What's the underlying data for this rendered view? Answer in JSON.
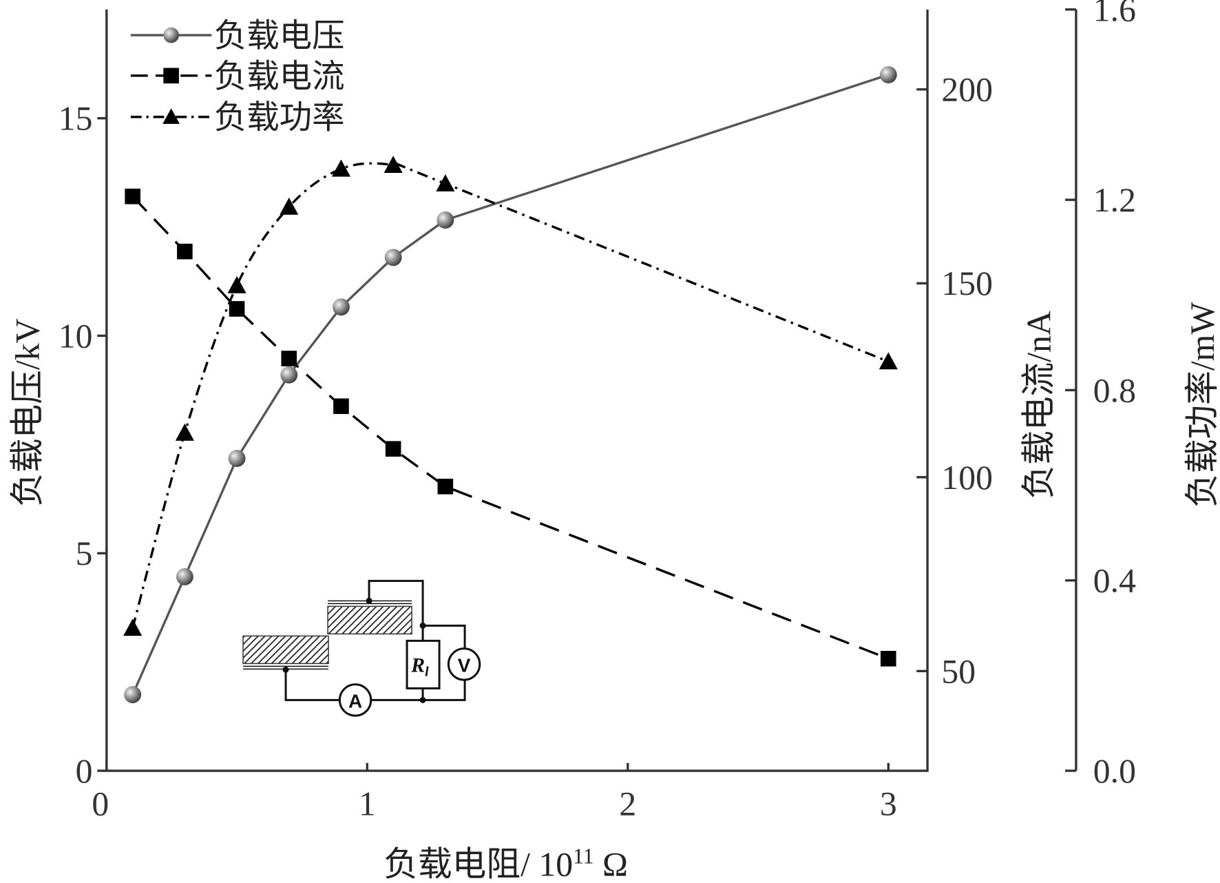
{
  "chart_data": {
    "type": "line",
    "xlabel": "负载电阻/ 10",
    "xlabel_exp": "11",
    "xlabel_unit": " Ω",
    "xlim": [
      0,
      3.15
    ],
    "x_ticks": [
      "0",
      "1",
      "2",
      "3"
    ],
    "axes": {
      "left": {
        "label": "负载电压/kV",
        "ylim": [
          0,
          17.5
        ],
        "ticks": [
          "0",
          "5",
          "10",
          "15"
        ]
      },
      "right1": {
        "label": "负载电流/nA",
        "ylim": [
          24.3,
          220.6
        ],
        "ticks": [
          "50",
          "100",
          "150",
          "200"
        ]
      },
      "right2": {
        "label": "负载功率/mW",
        "ylim": [
          0,
          1.6
        ],
        "ticks": [
          "0.0",
          "0.4",
          "0.8",
          "1.2",
          "1.6"
        ]
      }
    },
    "x": [
      0.1,
      0.3,
      0.5,
      0.7,
      0.9,
      1.1,
      1.3,
      3.0
    ],
    "series": [
      {
        "name": "负载电压",
        "axis": "left",
        "marker": "sphere",
        "line": "solid",
        "color": "#555555",
        "values": [
          1.75,
          4.46,
          7.18,
          9.1,
          10.66,
          11.8,
          12.66,
          16.0
        ]
      },
      {
        "name": "负载电流",
        "axis": "right1",
        "marker": "square",
        "line": "dashed",
        "color": "#000000",
        "values": [
          172.4,
          158.2,
          143.4,
          130.6,
          118.3,
          107.3,
          97.6,
          53.2
        ]
      },
      {
        "name": "负载功率",
        "axis": "right2",
        "marker": "triangle",
        "line": "dash-dot",
        "color": "#000000",
        "values": [
          0.3,
          0.71,
          1.02,
          1.185,
          1.265,
          1.273,
          1.234,
          0.86
        ]
      }
    ],
    "legend": "top-left",
    "grid": false,
    "inset_circuit": {
      "resistor_label": "R",
      "resistor_sub": "l",
      "voltmeter": "V",
      "ammeter": "A"
    }
  }
}
